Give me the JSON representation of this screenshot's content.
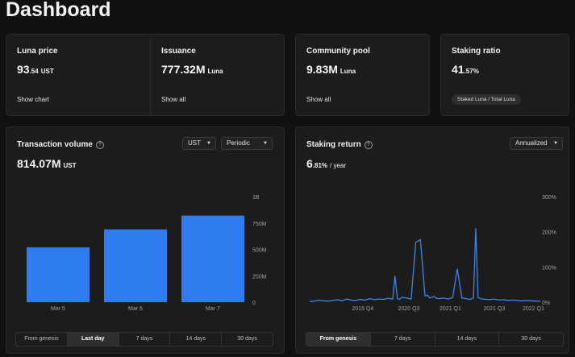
{
  "page_title": "Dashboard",
  "cards": {
    "luna_price": {
      "label": "Luna price",
      "value_int": "93",
      "value_dec": ".54",
      "unit": "UST",
      "link": "Show chart"
    },
    "issuance": {
      "label": "Issuance",
      "value": "777.32M",
      "unit": "Luna",
      "link": "Show all"
    },
    "community_pool": {
      "label": "Community pool",
      "value": "9.83M",
      "unit": "Luna",
      "link": "Show all"
    },
    "staking_ratio": {
      "label": "Staking ratio",
      "value_int": "41",
      "value_dec": ".57%",
      "pill": "Staked Luna / Total Luna"
    }
  },
  "tx_volume": {
    "title": "Transaction volume",
    "help_icon": "question-circle-icon",
    "value": "814.07M",
    "unit": "UST",
    "currency_select": "UST",
    "mode_select": "Periodic",
    "tabs": [
      "From genesis",
      "Last day",
      "7 days",
      "14 days",
      "30 days"
    ],
    "active_tab": "Last day"
  },
  "staking_return": {
    "title": "Staking return",
    "help_icon": "question-circle-icon",
    "value_int": "6",
    "value_dec": ".81%",
    "suffix": "/ year",
    "mode_select": "Annualized",
    "tabs": [
      "From genesis",
      "7 days",
      "14 days",
      "30 days"
    ],
    "active_tab": "From genesis"
  },
  "chart_data": [
    {
      "type": "bar",
      "categories": [
        "Mar 5",
        "Mar 6",
        "Mar 7"
      ],
      "values": [
        520000000,
        690000000,
        820000000
      ],
      "y_ticks": [
        "0",
        "250M",
        "500M",
        "750M",
        "1B"
      ],
      "ylim": [
        0,
        1000000000
      ],
      "color": "#2f7bf0",
      "grid": false
    },
    {
      "type": "line",
      "x_ticks": [
        "2019 Q4",
        "2020 Q3",
        "2021 Q1",
        "2021 Q3",
        "2022 Q1"
      ],
      "y_ticks": [
        "0%",
        "100%",
        "200%",
        "300%"
      ],
      "ylim": [
        0,
        300
      ],
      "color": "#3a86e8",
      "grid": false,
      "x": [
        0,
        2,
        4,
        6,
        8,
        10,
        12,
        14,
        16,
        18,
        20,
        22,
        24,
        26,
        28,
        30,
        32,
        34,
        36,
        37,
        38,
        39,
        40,
        42,
        44,
        46,
        48,
        50,
        51,
        52,
        53,
        54,
        55,
        56,
        58,
        60,
        62,
        64,
        66,
        68,
        69,
        70,
        71,
        72,
        73,
        74,
        76,
        78,
        80,
        82,
        84,
        86,
        88,
        90,
        92,
        94,
        96,
        98,
        100
      ],
      "y": [
        2,
        3,
        6,
        4,
        3,
        5,
        7,
        4,
        9,
        6,
        5,
        8,
        6,
        10,
        7,
        9,
        8,
        11,
        9,
        75,
        10,
        8,
        14,
        12,
        9,
        170,
        178,
        18,
        20,
        12,
        14,
        16,
        11,
        10,
        12,
        9,
        13,
        95,
        12,
        10,
        8,
        9,
        12,
        210,
        14,
        10,
        8,
        7,
        9,
        6,
        7,
        5,
        6,
        5,
        4,
        5,
        4,
        3,
        3
      ]
    }
  ]
}
